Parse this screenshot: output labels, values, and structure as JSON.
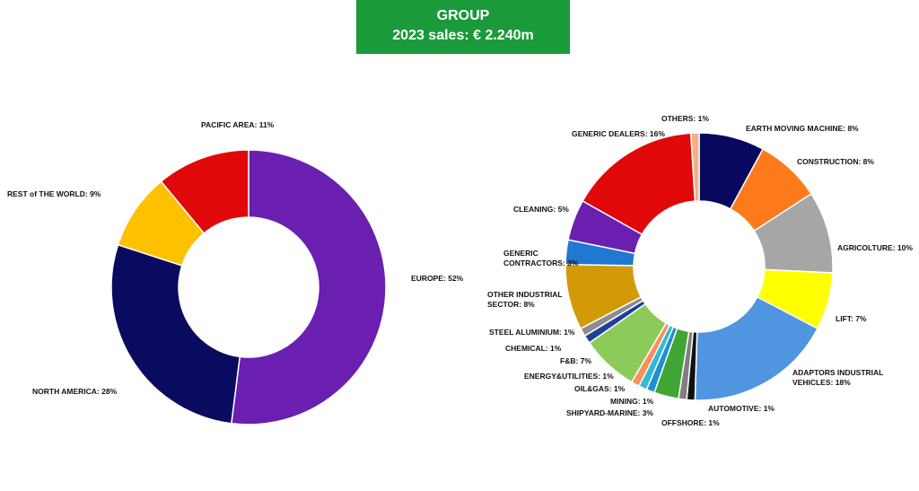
{
  "header": {
    "line1": "GROUP",
    "line2": "2023 sales: € 2.240m"
  },
  "chart_data": [
    {
      "type": "pie",
      "variant": "donut",
      "categories": [
        "EUROPE",
        "NORTH AMERICA",
        "REST of THE WORLD",
        "PACIFIC AREA"
      ],
      "values": [
        52,
        28,
        9,
        11
      ],
      "labels": [
        "EUROPE: 52%",
        "NORTH AMERICA: 28%",
        "REST of THE WORLD: 9%",
        "PACIFIC AREA: 11%"
      ],
      "colors": [
        "#6a1fb0",
        "#0a0a5e",
        "#ffc000",
        "#e00808"
      ]
    },
    {
      "type": "pie",
      "variant": "donut",
      "categories": [
        "EARTH MOVING MACHINE",
        "CONSTRUCTION",
        "AGRICOLTURE",
        "LIFT",
        "ADAPTORS INDUSTRIAL VEHICLES",
        "AUTOMOTIVE",
        "OFFSHORE",
        "SHIPYARD-MARINE",
        "MINING",
        "OIL&GAS",
        "ENERGY&UTILITIES",
        "F&B",
        "CHEMICAL",
        "STEEL ALUMINIUM",
        "OTHER INDUSTRIAL SECTOR",
        "GENERIC CONTRACTORS",
        "CLEANING",
        "GENERIC DEALERS",
        "OTHERS"
      ],
      "values": [
        8,
        8,
        10,
        7,
        18,
        1,
        1,
        3,
        1,
        1,
        1,
        7,
        1,
        1,
        8,
        3,
        5,
        16,
        1
      ],
      "labels": [
        "EARTH MOVING MACHINE: 8%",
        "CONSTRUCTION: 8%",
        "AGRICOLTURE: 10%",
        "LIFT: 7%",
        "ADAPTORS INDUSTRIAL VEHICLES: 18%",
        "AUTOMOTIVE: 1%",
        "OFFSHORE: 1%",
        "SHIPYARD-MARINE: 3%",
        "MINING: 1%",
        "OIL&GAS: 1%",
        "ENERGY&UTILITIES: 1%",
        "F&B: 7%",
        "CHEMICAL: 1%",
        "STEEL ALUMINIUM: 1%",
        "OTHER INDUSTRIAL SECTOR: 8%",
        "GENERIC CONTRACTORS: 3%",
        "CLEANING: 5%",
        "GENERIC DEALERS: 16%",
        "OTHERS: 1%"
      ],
      "colors": [
        "#08085e",
        "#ff7a1a",
        "#a6a6a6",
        "#ffff00",
        "#4f95e0",
        "#111111",
        "#7f7f7f",
        "#3fa535",
        "#1f8fd1",
        "#33b8d6",
        "#ff8c5a",
        "#8ccb5a",
        "#1f3e9e",
        "#8c8c8c",
        "#d19a06",
        "#1f78d1",
        "#6a1fb0",
        "#e00808",
        "#f4b183"
      ]
    }
  ]
}
